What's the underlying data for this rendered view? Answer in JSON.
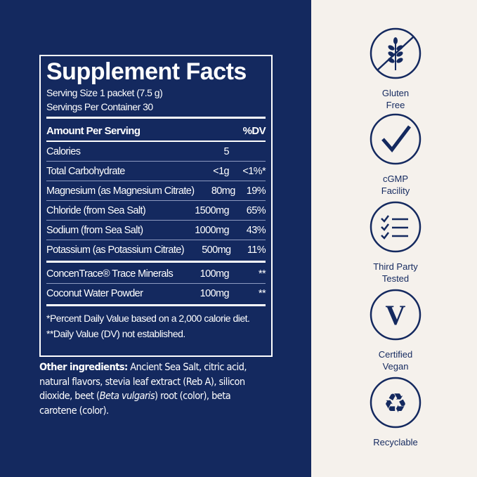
{
  "facts": {
    "title": "Supplement Facts",
    "serving_size": "Serving Size 1 packet (7.5 g)",
    "servings_per_container": "Servings Per Container 30",
    "header_amount": "Amount Per Serving",
    "header_dv": "%DV",
    "rows": [
      {
        "name": "Calories",
        "amount": "5",
        "dv": ""
      },
      {
        "name": "Total Carbohydrate",
        "amount": "<1g",
        "dv": "<1%*"
      },
      {
        "name": "Magnesium (as Magnesium Citrate)",
        "amount": "80mg",
        "dv": "19%"
      },
      {
        "name": "Chloride (from Sea Salt)",
        "amount": "1500mg",
        "dv": "65%"
      },
      {
        "name": "Sodium (from Sea Salt)",
        "amount": "1000mg",
        "dv": "43%"
      },
      {
        "name": "Potassium (as Potassium Citrate)",
        "amount": "500mg",
        "dv": "11%"
      }
    ],
    "rows2": [
      {
        "name": "ConcenTrace® Trace Minerals",
        "amount": "100mg",
        "dv": "**"
      },
      {
        "name": "Coconut Water Powder",
        "amount": "100mg",
        "dv": "**"
      }
    ],
    "footnote1": "*Percent Daily Value based on a 2,000 calorie diet.",
    "footnote2": "**Daily Value (DV) not established."
  },
  "other": {
    "label": "Other ingredients:",
    "text1": " Ancient Sea Salt, citric acid, natural flavors, stevia leaf extract (Reb A), silicon dioxide, beet (",
    "italic": "Beta vulgaris",
    "text2": ") root (color), beta carotene (color)."
  },
  "badges": [
    {
      "icon": "gluten-free-icon",
      "line1": "Gluten",
      "line2": "Free"
    },
    {
      "icon": "checkmark-icon",
      "line1": "cGMP",
      "line2": "Facility"
    },
    {
      "icon": "checklist-icon",
      "line1": "Third Party",
      "line2": "Tested"
    },
    {
      "icon": "vegan-icon",
      "line1": "Certified",
      "line2": "Vegan",
      "symbol": "V"
    },
    {
      "icon": "recycle-icon",
      "line1": "Recyclable",
      "line2": ""
    }
  ],
  "colors": {
    "navy": "#14295f",
    "cream": "#f5f1ec"
  }
}
